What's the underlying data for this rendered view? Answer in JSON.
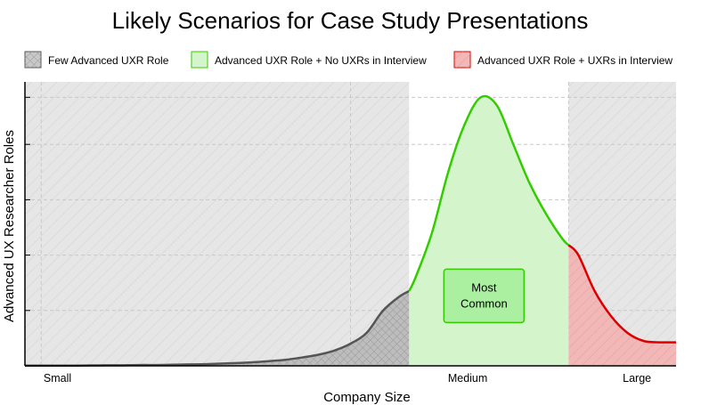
{
  "chart_data": {
    "type": "area",
    "title": "Likely Scenarios for Case Study Presentations",
    "xlabel": "Company Size",
    "ylabel": "Advanced UX Researcher Roles",
    "x_ticks": [
      "Small",
      "Medium",
      "Large"
    ],
    "grid": true,
    "legend_position": "top",
    "legend": [
      {
        "label": "Few Advanced UXR Role",
        "fill": "#c8c8c8",
        "stroke": "#555555",
        "hatch": "crosshatch"
      },
      {
        "label": "Advanced UXR Role + No UXRs in Interview",
        "fill": "#d4f5cc",
        "stroke": "#33cc00"
      },
      {
        "label": "Advanced UXR Role + UXRs in Interview",
        "fill": "#f2b8b8",
        "stroke": "#dd0000",
        "hatch": "diagonal"
      }
    ],
    "x": [
      0.0,
      0.5,
      1.0,
      1.5,
      2.0,
      2.5,
      3.0,
      3.5,
      4.0,
      4.5,
      5.0,
      5.5,
      6.0,
      6.5,
      7.0,
      7.5,
      8.0,
      8.5,
      9.0,
      9.5,
      10.0,
      10.5,
      11.0,
      11.5,
      11.8,
      12.0,
      12.5,
      13.0,
      13.5,
      14.0,
      14.5,
      15.0,
      15.5,
      16.0,
      16.5,
      17.0,
      17.5,
      18.0,
      18.5,
      19.0,
      19.5,
      20.0
    ],
    "series": [
      {
        "name": "Few Advanced UXR Role",
        "x_range": [
          0,
          11.8
        ],
        "line_color": "#555555"
      },
      {
        "name": "Advanced UXR Role + No UXRs in Interview",
        "x_range": [
          11.8,
          16.7
        ],
        "line_color": "#33cc00"
      },
      {
        "name": "Advanced UXR Role + UXRs in Interview",
        "x_range": [
          16.7,
          20.0
        ],
        "line_color": "#dd0000"
      }
    ],
    "values": [
      0.1,
      0.1,
      0.1,
      0.1,
      0.15,
      0.2,
      0.2,
      0.3,
      0.3,
      0.4,
      0.5,
      0.6,
      0.8,
      1.0,
      1.3,
      1.7,
      2.2,
      3.0,
      4.0,
      5.5,
      8.0,
      12.0,
      20.0,
      25.0,
      27.0,
      32.0,
      48.0,
      70.0,
      87.0,
      97.0,
      94.0,
      80.0,
      66.0,
      55.0,
      46.0,
      40.0,
      27.0,
      18.0,
      12.0,
      9.0,
      8.5,
      8.5
    ],
    "y_range": [
      0,
      100
    ],
    "x_range": [
      0,
      20
    ],
    "shaded_regions": [
      {
        "x_range": [
          0,
          11.8
        ],
        "fill": "#e6e6e6"
      },
      {
        "x_range": [
          16.7,
          20.0
        ],
        "fill": "#e6e6e6"
      }
    ],
    "annotation": {
      "text_lines": [
        "Most",
        "Common"
      ],
      "x": 14.1,
      "y": 24,
      "fill": "#aaf0a0",
      "stroke": "#33cc00"
    }
  }
}
